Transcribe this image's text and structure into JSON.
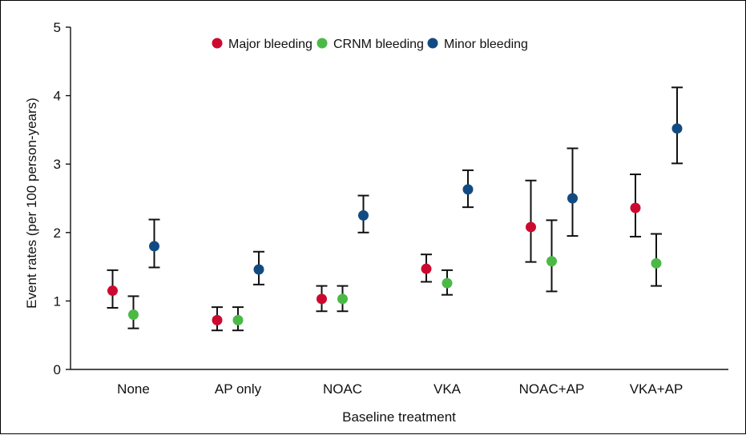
{
  "chart_data": {
    "type": "scatter",
    "title": "",
    "xlabel": "Baseline treatment",
    "ylabel": "Event rates (per 100 person-years)",
    "ylim": [
      0,
      5
    ],
    "yticks": [
      0,
      1,
      2,
      3,
      4,
      5
    ],
    "categories": [
      "None",
      "AP only",
      "NOAC",
      "VKA",
      "NOAC+AP",
      "VKA+AP"
    ],
    "legend_position": "top-center",
    "grid": false,
    "series": [
      {
        "name": "Major bleeding",
        "color": "#cc0a2f",
        "values": [
          1.15,
          0.72,
          1.03,
          1.47,
          2.08,
          2.36
        ],
        "lower": [
          0.9,
          0.57,
          0.85,
          1.28,
          1.57,
          1.94
        ],
        "upper": [
          1.45,
          0.91,
          1.22,
          1.68,
          2.76,
          2.85
        ]
      },
      {
        "name": "CRNM bleeding",
        "color": "#4cb947",
        "values": [
          0.8,
          0.72,
          1.03,
          1.26,
          1.58,
          1.55
        ],
        "lower": [
          0.6,
          0.57,
          0.85,
          1.09,
          1.14,
          1.22
        ],
        "upper": [
          1.07,
          0.91,
          1.22,
          1.45,
          2.18,
          1.98
        ]
      },
      {
        "name": "Minor bleeding",
        "color": "#124b82",
        "values": [
          1.8,
          1.46,
          2.25,
          2.63,
          2.5,
          3.52
        ],
        "lower": [
          1.49,
          1.24,
          2.0,
          2.37,
          1.95,
          3.01
        ],
        "upper": [
          2.19,
          1.72,
          2.54,
          2.91,
          3.23,
          4.12
        ]
      }
    ]
  }
}
